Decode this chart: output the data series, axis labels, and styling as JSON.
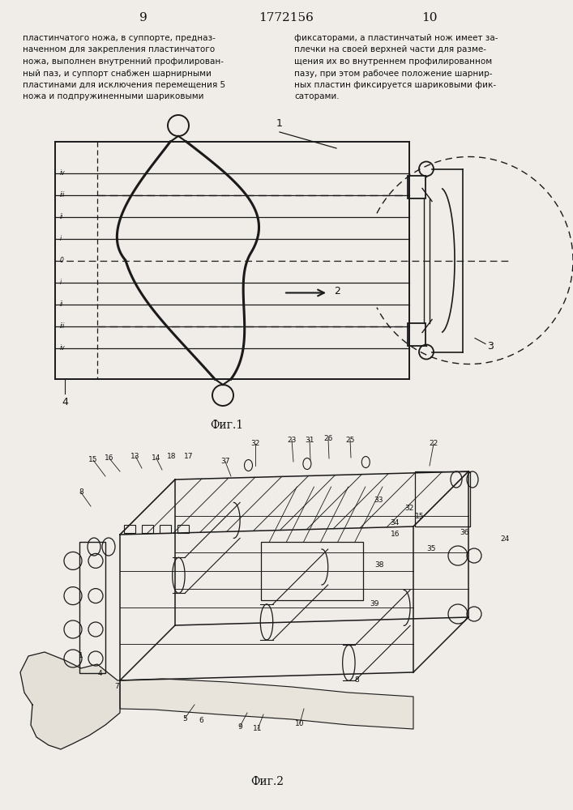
{
  "page_left": "9",
  "page_center": "1772156",
  "page_right": "10",
  "text_left_lines": [
    "пластинчатого ножа, в суппорте, предназ-",
    "наченном для закрепления пластинчатого",
    "ножа, выполнен внутренний профилирован-",
    "ный паз, и суппорт снабжен шарнирными",
    "пластинами для исключения перемещения 5",
    "ножа и подпружиненными шариковыми"
  ],
  "text_right_lines": [
    "фиксаторами, а пластинчатый нож имеет за-",
    "плечки на своей верхней части для разме-",
    "щения их во внутреннем профилированном",
    "пазу, при этом рабочее положение шарнир-",
    "ных пластин фиксируется шариковыми фик-",
    "саторами."
  ],
  "fig1_caption": "Фиг.1",
  "fig2_caption": "Фиг.2",
  "bg": "#f0ede8",
  "lc": "#1a1a1a",
  "tc": "#111111"
}
